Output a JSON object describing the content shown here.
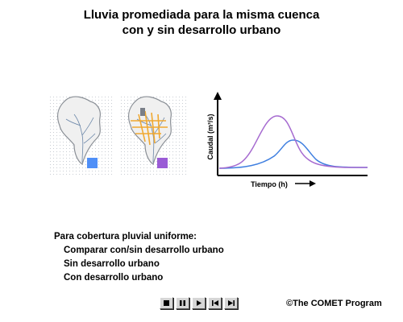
{
  "title": {
    "line1": "Lluvia promediada para la misma cuenca",
    "line2": "con y sin desarrollo urbano"
  },
  "hydrograph": {
    "ylabel": "Caudal (m³/s)",
    "xlabel": "Tiempo (h)",
    "series_colors": {
      "urbano": "#a66bd0",
      "sin_desarrollo": "#3f7fe0"
    }
  },
  "legend_colors": {
    "natural": "#4f8ff7",
    "urbano": "#9a5bd6"
  },
  "section": {
    "heading": "Para cobertura pluvial uniforme:",
    "items": [
      "Comparar con/sin desarrollo urbano",
      "Sin desarrollo urbano",
      "Con desarrollo urbano"
    ]
  },
  "controls": [
    "stop-icon",
    "pause-icon",
    "play-icon",
    "rewind-icon",
    "fast-forward-icon"
  ],
  "copyright": "©The COMET Program"
}
